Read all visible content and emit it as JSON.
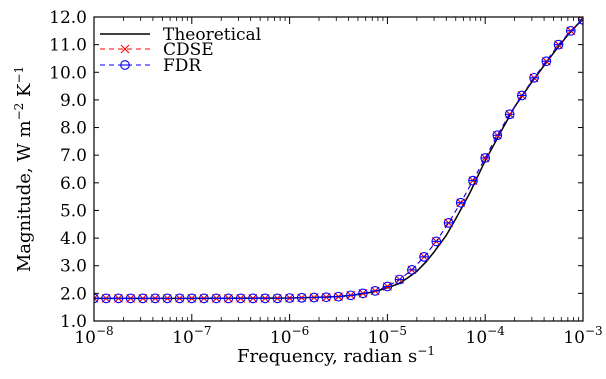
{
  "chart_data": {
    "type": "line",
    "xlabel": "Frequency, radian s",
    "xlabel_unit_exp": "−1",
    "ylabel": "Magnitude, W m",
    "ylabel_exp1": "−2",
    "ylabel_mid": " K",
    "ylabel_exp2": "−1",
    "xscale": "log",
    "xlim": [
      1e-08,
      0.001
    ],
    "ylim": [
      1.0,
      12.0
    ],
    "x_ticks": [
      {
        "value": 1e-08,
        "base": "10",
        "exp": "−8"
      },
      {
        "value": 1e-07,
        "base": "10",
        "exp": "−7"
      },
      {
        "value": 1e-06,
        "base": "10",
        "exp": "−6"
      },
      {
        "value": 1e-05,
        "base": "10",
        "exp": "−5"
      },
      {
        "value": 0.0001,
        "base": "10",
        "exp": "−4"
      },
      {
        "value": 0.001,
        "base": "10",
        "exp": "−3"
      }
    ],
    "y_ticks": [
      "1.0",
      "2.0",
      "3.0",
      "4.0",
      "5.0",
      "6.0",
      "7.0",
      "8.0",
      "9.0",
      "10.0",
      "11.0",
      "12.0"
    ],
    "grid": false,
    "legend_position": "top-left",
    "series": [
      {
        "name": "Theoretical",
        "style": "solid-line",
        "color": "#000000",
        "x": [
          1e-08,
          1e-07,
          1e-06,
          2e-06,
          3e-06,
          4e-06,
          5e-06,
          6e-06,
          7e-06,
          8e-06,
          1e-05,
          1.3e-05,
          1.6e-05,
          2e-05,
          2.5e-05,
          3e-05,
          4e-05,
          5e-05,
          7e-05,
          0.0001,
          0.00015,
          0.0002,
          0.0003,
          0.0005,
          0.0007,
          0.001
        ],
        "y": [
          1.82,
          1.82,
          1.83,
          1.86,
          1.88,
          1.92,
          1.96,
          2.0,
          2.05,
          2.1,
          2.2,
          2.35,
          2.55,
          2.8,
          3.15,
          3.5,
          4.1,
          4.7,
          5.65,
          6.8,
          7.95,
          8.75,
          9.65,
          10.7,
          11.35,
          11.95
        ]
      },
      {
        "name": "CDSE",
        "style": "dashed-x",
        "color": "#ff0000",
        "x": [
          1e-08,
          1.33e-08,
          1.78e-08,
          2.37e-08,
          3.16e-08,
          4.22e-08,
          5.62e-08,
          7.5e-08,
          1e-07,
          1.33e-07,
          1.78e-07,
          2.37e-07,
          3.16e-07,
          4.22e-07,
          5.62e-07,
          7.5e-07,
          1e-06,
          1.33e-06,
          1.78e-06,
          2.37e-06,
          3.16e-06,
          4.22e-06,
          5.62e-06,
          7.5e-06,
          1e-05,
          1.33e-05,
          1.78e-05,
          2.37e-05,
          3.16e-05,
          4.22e-05,
          5.62e-05,
          7.5e-05,
          0.0001,
          0.000133,
          0.000178,
          0.000237,
          0.000316,
          0.000422,
          0.000562,
          0.00075,
          0.001
        ],
        "y": [
          1.82,
          1.82,
          1.82,
          1.82,
          1.82,
          1.82,
          1.82,
          1.82,
          1.82,
          1.82,
          1.82,
          1.82,
          1.82,
          1.82,
          1.82,
          1.82,
          1.83,
          1.84,
          1.85,
          1.86,
          1.88,
          1.93,
          2.0,
          2.09,
          2.25,
          2.5,
          2.85,
          3.32,
          3.88,
          4.55,
          5.28,
          6.08,
          6.9,
          7.72,
          8.48,
          9.16,
          9.8,
          10.4,
          11.0,
          11.5,
          11.9
        ]
      },
      {
        "name": "FDR",
        "style": "dashed-circle",
        "color": "#0000ff",
        "x": [
          1e-08,
          1.33e-08,
          1.78e-08,
          2.37e-08,
          3.16e-08,
          4.22e-08,
          5.62e-08,
          7.5e-08,
          1e-07,
          1.33e-07,
          1.78e-07,
          2.37e-07,
          3.16e-07,
          4.22e-07,
          5.62e-07,
          7.5e-07,
          1e-06,
          1.33e-06,
          1.78e-06,
          2.37e-06,
          3.16e-06,
          4.22e-06,
          5.62e-06,
          7.5e-06,
          1e-05,
          1.33e-05,
          1.78e-05,
          2.37e-05,
          3.16e-05,
          4.22e-05,
          5.62e-05,
          7.5e-05,
          0.0001,
          0.000133,
          0.000178,
          0.000237,
          0.000316,
          0.000422,
          0.000562,
          0.00075,
          0.001
        ],
        "y": [
          1.82,
          1.82,
          1.82,
          1.82,
          1.82,
          1.82,
          1.82,
          1.82,
          1.82,
          1.82,
          1.82,
          1.82,
          1.82,
          1.82,
          1.82,
          1.82,
          1.83,
          1.84,
          1.85,
          1.86,
          1.88,
          1.93,
          2.0,
          2.09,
          2.25,
          2.5,
          2.85,
          3.32,
          3.88,
          4.55,
          5.28,
          6.08,
          6.9,
          7.72,
          8.48,
          9.16,
          9.8,
          10.4,
          11.0,
          11.5,
          11.9
        ]
      }
    ]
  }
}
